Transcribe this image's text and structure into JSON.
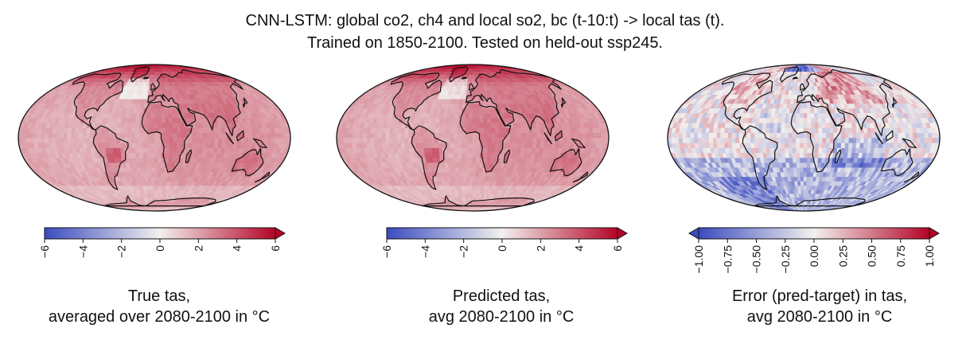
{
  "title_line1": "CNN-LSTM: global co2, ch4 and local so2, bc (t-10:t) -> local tas (t).",
  "title_line2": "Trained on 1850-2100. Tested on held-out ssp245.",
  "colors": {
    "cmap_low": "#3b4cc0",
    "cmap_mid": "#f2f0ee",
    "cmap_high": "#b40426",
    "land_outline": "#111111"
  },
  "chart_data": [
    {
      "type": "heatmap",
      "projection": "mollweide",
      "variable": "True tas",
      "caption_line1": "True tas,",
      "caption_line2": "averaged over 2080-2100  in °C",
      "colorbar": {
        "min": -6,
        "max": 6,
        "extend": "max",
        "ticks": [
          -6,
          -4,
          -2,
          0,
          2,
          4,
          6
        ],
        "tick_labels": [
          "−6",
          "−4",
          "−2",
          "0",
          "2",
          "4",
          "6"
        ]
      },
      "typical_values": {
        "global_ocean": 2.0,
        "tropical_land": 2.8,
        "arctic": 6.0,
        "north_atlantic": 0.3
      }
    },
    {
      "type": "heatmap",
      "projection": "mollweide",
      "variable": "Predicted tas",
      "caption_line1": "Predicted tas,",
      "caption_line2": "avg 2080-2100  in °C",
      "colorbar": {
        "min": -6,
        "max": 6,
        "extend": "max",
        "ticks": [
          -6,
          -4,
          -2,
          0,
          2,
          4,
          6
        ],
        "tick_labels": [
          "−6",
          "−4",
          "−2",
          "0",
          "2",
          "4",
          "6"
        ]
      },
      "typical_values": {
        "global_ocean": 2.0,
        "tropical_land": 2.8,
        "arctic": 6.0,
        "north_atlantic": 0.6
      }
    },
    {
      "type": "heatmap",
      "projection": "mollweide",
      "variable": "Error (pred-target) in tas",
      "caption_line1": "Error (pred-target) in tas,",
      "caption_line2": "avg 2080-2100  in °C",
      "colorbar": {
        "min": -1,
        "max": 1,
        "extend": "both",
        "ticks": [
          -1.0,
          -0.75,
          -0.5,
          -0.25,
          0.0,
          0.25,
          0.5,
          0.75,
          1.0
        ],
        "tick_labels": [
          "−1.00",
          "−0.75",
          "−0.50",
          "−0.25",
          "0.00",
          "0.25",
          "0.50",
          "0.75",
          "1.00"
        ]
      },
      "typical_values": {
        "southern_ocean": -0.5,
        "eurasia": 0.3,
        "north_america": 0.2,
        "arctic_ocean": -0.9
      }
    }
  ]
}
